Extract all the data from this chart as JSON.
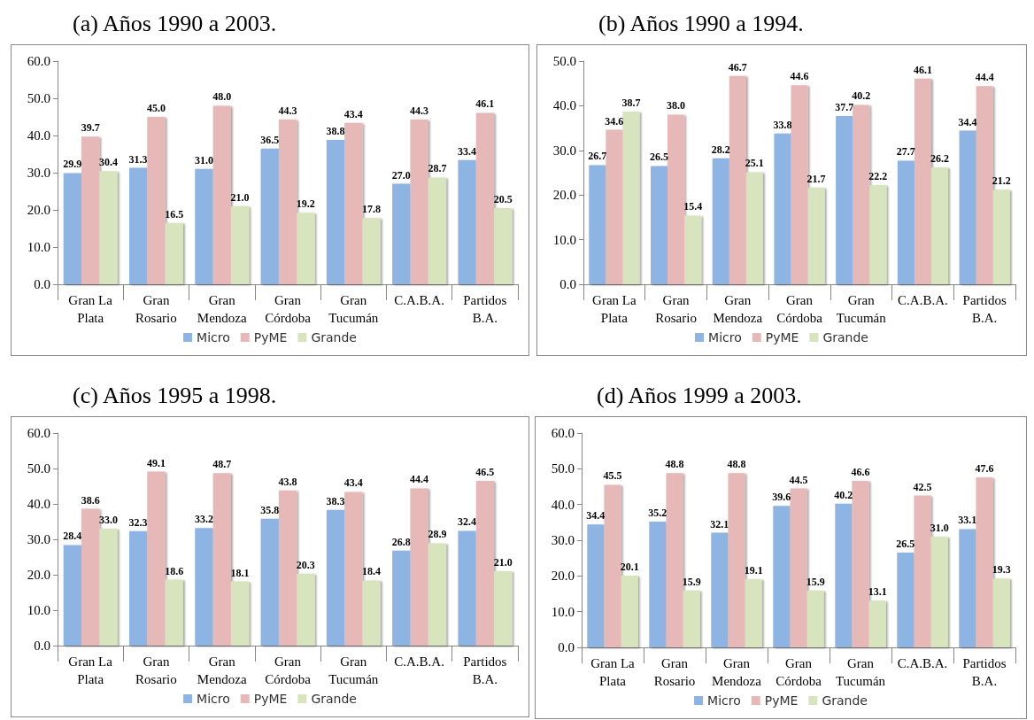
{
  "chart_data": [
    {
      "type": "bar",
      "title": "(a) Años 1990 a 2003.",
      "categories": [
        "Gran La\nPlata",
        "Gran\nRosario",
        "Gran\nMendoza",
        "Gran\nCórdoba",
        "Gran\nTucumán",
        "C.A.B.A.",
        "Partidos\nB.A."
      ],
      "series": [
        {
          "name": "Micro",
          "color": "#8db4e2",
          "values": [
            29.9,
            31.3,
            31.0,
            36.5,
            38.8,
            27.0,
            33.4
          ],
          "value_labels": [
            "29.9",
            "31.3",
            "31.0",
            "36.5",
            "38.8",
            "27.0",
            "33.4"
          ]
        },
        {
          "name": "PyME",
          "color": "#e6b9b8",
          "values": [
            39.7,
            45.0,
            48.0,
            44.3,
            43.4,
            44.3,
            46.1
          ],
          "value_labels": [
            "39.7",
            "45.0",
            "48.0",
            "44.3",
            "43.4",
            "44.3",
            "46.1"
          ]
        },
        {
          "name": "Grande",
          "color": "#d7e4bd",
          "values": [
            30.4,
            16.5,
            21.0,
            19.2,
            17.8,
            28.7,
            20.5
          ],
          "value_labels": [
            "30.4",
            "16.5",
            "21.0",
            "19.2",
            "17.8",
            "28.7",
            "20.5"
          ]
        }
      ],
      "ylim": [
        0,
        60
      ],
      "yticks": [
        {
          "value": 0,
          "label": "0.0"
        },
        {
          "value": 10,
          "label": "10.0"
        },
        {
          "value": 20,
          "label": "20.0"
        },
        {
          "value": 30,
          "label": "30.0"
        },
        {
          "value": 40,
          "label": "40.0"
        },
        {
          "value": 50,
          "label": "50.0"
        },
        {
          "value": 60,
          "label": "60.0"
        }
      ],
      "legend": "bottom"
    },
    {
      "type": "bar",
      "title": "(b) Años 1990 a 1994.",
      "categories": [
        "Gran La\nPlata",
        "Gran\nRosario",
        "Gran\nMendoza",
        "Gran\nCórdoba",
        "Gran\nTucumán",
        "C.A.B.A.",
        "Partidos\nB.A."
      ],
      "series": [
        {
          "name": "Micro",
          "color": "#8db4e2",
          "values": [
            26.7,
            26.5,
            28.2,
            33.8,
            37.7,
            27.7,
            34.4
          ],
          "value_labels": [
            "26.7",
            "26.5",
            "28.2",
            "33.8",
            "37.7",
            "27.7",
            "34.4"
          ]
        },
        {
          "name": "PyME",
          "color": "#e6b9b8",
          "values": [
            34.6,
            38.0,
            46.7,
            44.6,
            40.2,
            46.1,
            44.4
          ],
          "value_labels": [
            "34.6",
            "38.0",
            "46.7",
            "44.6",
            "40.2",
            "46.1",
            "44.4"
          ]
        },
        {
          "name": "Grande",
          "color": "#d7e4bd",
          "values": [
            38.7,
            15.4,
            25.1,
            21.7,
            22.2,
            26.2,
            21.2
          ],
          "value_labels": [
            "38.7",
            "15.4",
            "25.1",
            "21.7",
            "22.2",
            "26.2",
            "21.2"
          ]
        }
      ],
      "ylim": [
        0,
        50
      ],
      "yticks": [
        {
          "value": 0,
          "label": "0.0"
        },
        {
          "value": 10,
          "label": "10.0"
        },
        {
          "value": 20,
          "label": "20.0"
        },
        {
          "value": 30,
          "label": "30.0"
        },
        {
          "value": 40,
          "label": "40.0"
        },
        {
          "value": 50,
          "label": "50.0"
        }
      ],
      "legend": "bottom"
    },
    {
      "type": "bar",
      "title": "(c) Años 1995 a 1998.",
      "categories": [
        "Gran La\nPlata",
        "Gran\nRosario",
        "Gran\nMendoza",
        "Gran\nCórdoba",
        "Gran\nTucumán",
        "C.A.B.A.",
        "Partidos\nB.A."
      ],
      "series": [
        {
          "name": "Micro",
          "color": "#8db4e2",
          "values": [
            28.4,
            32.3,
            33.2,
            35.8,
            38.3,
            26.8,
            32.4
          ],
          "value_labels": [
            "28.4",
            "32.3",
            "33.2",
            "35.8",
            "38.3",
            "26.8",
            "32.4"
          ]
        },
        {
          "name": "PyME",
          "color": "#e6b9b8",
          "values": [
            38.6,
            49.1,
            48.7,
            43.8,
            43.4,
            44.4,
            46.5
          ],
          "value_labels": [
            "38.6",
            "49.1",
            "48.7",
            "43.8",
            "43.4",
            "44.4",
            "46.5"
          ]
        },
        {
          "name": "Grande",
          "color": "#d7e4bd",
          "values": [
            33.0,
            18.6,
            18.1,
            20.3,
            18.4,
            28.9,
            21.0
          ],
          "value_labels": [
            "33.0",
            "18.6",
            "18.1",
            "20.3",
            "18.4",
            "28.9",
            "21.0"
          ]
        }
      ],
      "ylim": [
        0,
        60
      ],
      "yticks": [
        {
          "value": 0,
          "label": "0.0"
        },
        {
          "value": 10,
          "label": "10.0"
        },
        {
          "value": 20,
          "label": "20.0"
        },
        {
          "value": 30,
          "label": "30.0"
        },
        {
          "value": 40,
          "label": "40.0"
        },
        {
          "value": 50,
          "label": "50.0"
        },
        {
          "value": 60,
          "label": "60.0"
        }
      ],
      "legend": "bottom"
    },
    {
      "type": "bar",
      "title": "(d) Años 1999 a 2003.",
      "categories": [
        "Gran La\nPlata",
        "Gran\nRosario",
        "Gran\nMendoza",
        "Gran\nCórdoba",
        "Gran\nTucumán",
        "C.A.B.A.",
        "Partidos\nB.A."
      ],
      "series": [
        {
          "name": "Micro",
          "color": "#8db4e2",
          "values": [
            34.4,
            35.2,
            32.1,
            39.6,
            40.2,
            26.5,
            33.1
          ],
          "value_labels": [
            "34.4",
            "35.2",
            "32.1",
            "39.6",
            "40.2",
            "26.5",
            "33.1"
          ]
        },
        {
          "name": "PyME",
          "color": "#e6b9b8",
          "values": [
            45.5,
            48.8,
            48.8,
            44.5,
            46.6,
            42.5,
            47.6
          ],
          "value_labels": [
            "45.5",
            "48.8",
            "48.8",
            "44.5",
            "46.6",
            "42.5",
            "47.6"
          ]
        },
        {
          "name": "Grande",
          "color": "#d7e4bd",
          "values": [
            20.1,
            15.9,
            19.1,
            15.9,
            13.1,
            31.0,
            19.3
          ],
          "value_labels": [
            "20.1",
            "15.9",
            "19.1",
            "15.9",
            "13.1",
            "31.0",
            "19.3"
          ]
        }
      ],
      "ylim": [
        0,
        60
      ],
      "yticks": [
        {
          "value": 0,
          "label": "0.0"
        },
        {
          "value": 10,
          "label": "10.0"
        },
        {
          "value": 20,
          "label": "20.0"
        },
        {
          "value": 30,
          "label": "30.0"
        },
        {
          "value": 40,
          "label": "40.0"
        },
        {
          "value": 50,
          "label": "50.0"
        },
        {
          "value": 60,
          "label": "60.0"
        }
      ],
      "legend": "bottom"
    }
  ]
}
